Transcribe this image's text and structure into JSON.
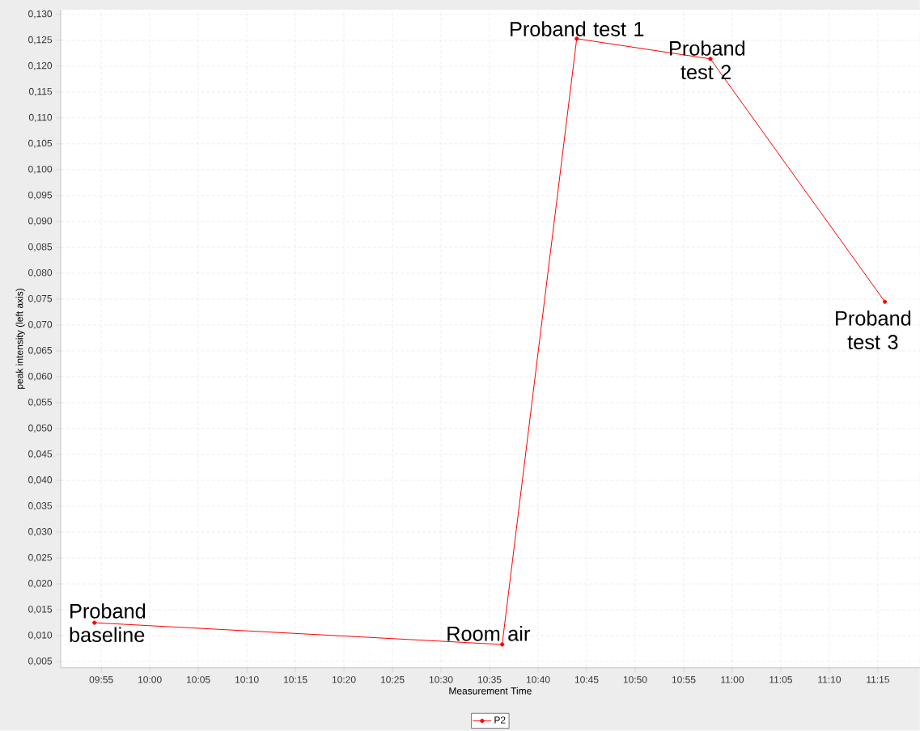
{
  "chart_data": {
    "type": "line",
    "xlabel": "Measurement Time",
    "ylabel": "peak intensity (left axis)",
    "x": [
      9.905,
      10.605,
      10.733,
      10.9625,
      11.262
    ],
    "series": [
      {
        "name": "P2",
        "color": "#ff0000",
        "values": [
          0.0125,
          0.0083,
          0.1253,
          0.1214,
          0.0745
        ]
      }
    ],
    "xlim": [
      9.847,
      11.322
    ],
    "ylim": [
      0.0038,
      0.1309
    ],
    "xticks": [
      {
        "value": 9.9167,
        "label": "09:55"
      },
      {
        "value": 10.0,
        "label": "10:00"
      },
      {
        "value": 10.0833,
        "label": "10:05"
      },
      {
        "value": 10.1667,
        "label": "10:10"
      },
      {
        "value": 10.25,
        "label": "10:15"
      },
      {
        "value": 10.3333,
        "label": "10:20"
      },
      {
        "value": 10.4167,
        "label": "10:25"
      },
      {
        "value": 10.5,
        "label": "10:30"
      },
      {
        "value": 10.5833,
        "label": "10:35"
      },
      {
        "value": 10.6667,
        "label": "10:40"
      },
      {
        "value": 10.75,
        "label": "10:45"
      },
      {
        "value": 10.8333,
        "label": "10:50"
      },
      {
        "value": 10.9167,
        "label": "10:55"
      },
      {
        "value": 11.0,
        "label": "11:00"
      },
      {
        "value": 11.0833,
        "label": "11:05"
      },
      {
        "value": 11.1667,
        "label": "11:10"
      },
      {
        "value": 11.25,
        "label": "11:15"
      }
    ],
    "yticks": [
      {
        "value": 0.005,
        "label": "0,005"
      },
      {
        "value": 0.01,
        "label": "0,010"
      },
      {
        "value": 0.015,
        "label": "0,015"
      },
      {
        "value": 0.02,
        "label": "0,020"
      },
      {
        "value": 0.025,
        "label": "0,025"
      },
      {
        "value": 0.03,
        "label": "0,030"
      },
      {
        "value": 0.035,
        "label": "0,035"
      },
      {
        "value": 0.04,
        "label": "0,040"
      },
      {
        "value": 0.045,
        "label": "0,045"
      },
      {
        "value": 0.05,
        "label": "0,050"
      },
      {
        "value": 0.055,
        "label": "0,055"
      },
      {
        "value": 0.06,
        "label": "0,060"
      },
      {
        "value": 0.065,
        "label": "0,065"
      },
      {
        "value": 0.07,
        "label": "0,070"
      },
      {
        "value": 0.075,
        "label": "0,075"
      },
      {
        "value": 0.08,
        "label": "0,080"
      },
      {
        "value": 0.085,
        "label": "0,085"
      },
      {
        "value": 0.09,
        "label": "0,090"
      },
      {
        "value": 0.095,
        "label": "0,095"
      },
      {
        "value": 0.1,
        "label": "0,100"
      },
      {
        "value": 0.105,
        "label": "0,105"
      },
      {
        "value": 0.11,
        "label": "0,110"
      },
      {
        "value": 0.115,
        "label": "0,115"
      },
      {
        "value": 0.12,
        "label": "0,120"
      },
      {
        "value": 0.125,
        "label": "0,125"
      },
      {
        "value": 0.13,
        "label": "0,130"
      }
    ],
    "annotations": [
      {
        "text": "Proband baseline",
        "x": 9.905,
        "y": 0.0125
      },
      {
        "text": "Room air",
        "x": 10.605,
        "y": 0.0083
      },
      {
        "text": "Proband test 1",
        "x": 10.733,
        "y": 0.1253
      },
      {
        "text": "Proband test 2",
        "x": 10.9625,
        "y": 0.1214
      },
      {
        "text": "Proband test 3",
        "x": 11.262,
        "y": 0.0745
      }
    ],
    "grid": true,
    "legend": "bottom",
    "marker": "circle",
    "line_style": "solid"
  }
}
